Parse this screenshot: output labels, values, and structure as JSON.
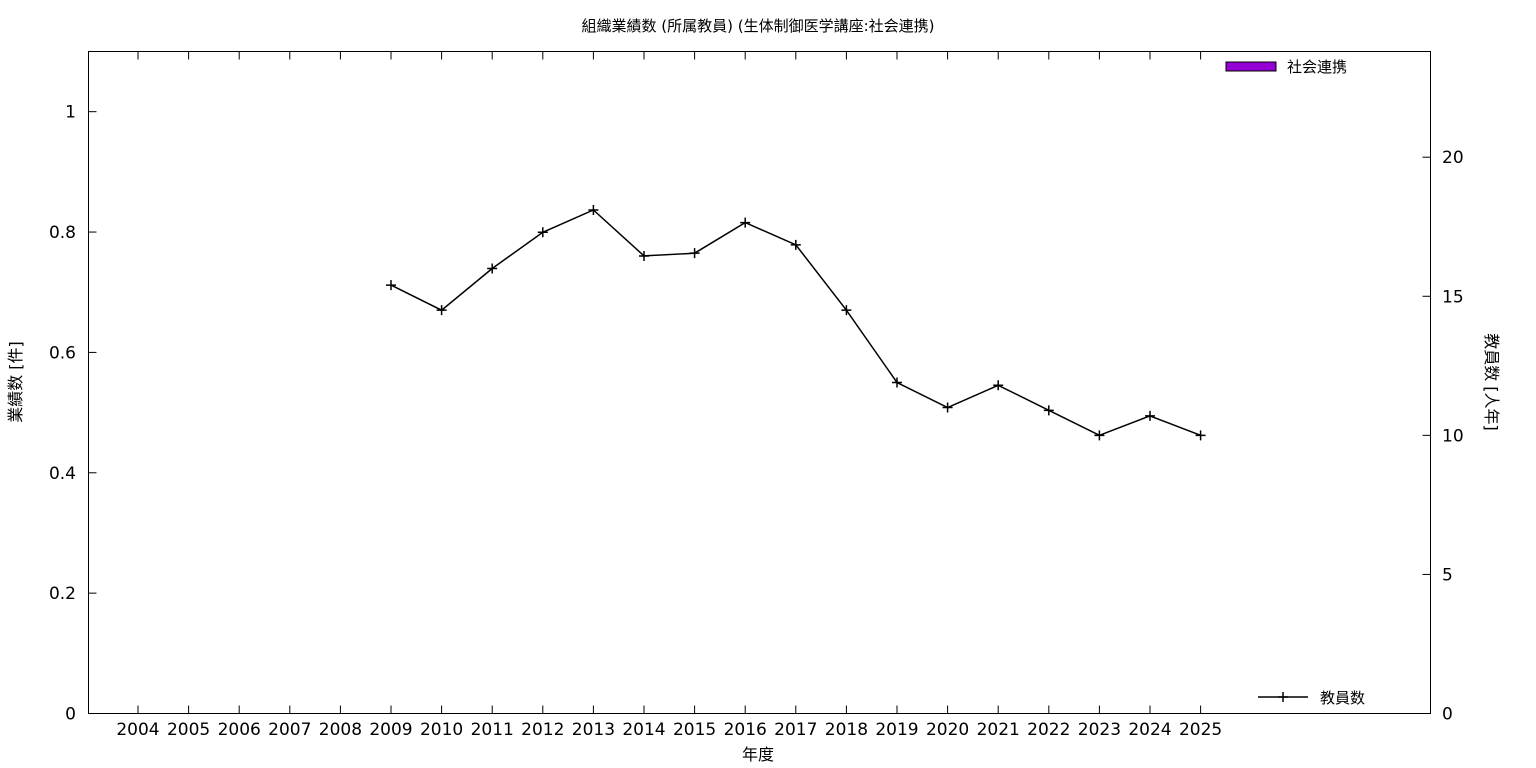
{
  "chart_data": {
    "type": "bar+line",
    "title": "組織業績数 (所属教員) (生体制御医学講座:社会連携)",
    "xlabel": "年度",
    "ylabel_left": "業績数 [件]",
    "ylabel_right": "教員数 [人年]",
    "categories": [
      "2004",
      "2005",
      "2006",
      "2007",
      "2008",
      "2009",
      "2010",
      "2011",
      "2012",
      "2013",
      "2014",
      "2015",
      "2016",
      "2017",
      "2018",
      "2019",
      "2020",
      "2021",
      "2022",
      "2023",
      "2024",
      "2025"
    ],
    "y_left": {
      "min": 0,
      "max": 1.1,
      "ticks": [
        0,
        0.2,
        0.4,
        0.6,
        0.8,
        1
      ],
      "tick_labels": [
        "0",
        "0.2",
        "0.4",
        "0.6",
        "0.8",
        "1"
      ]
    },
    "y_right": {
      "min": 0,
      "max": 23.8,
      "ticks": [
        0,
        5,
        10,
        15,
        20
      ],
      "tick_labels": [
        "0",
        "5",
        "10",
        "15",
        "20"
      ]
    },
    "series": [
      {
        "name": "社会連携",
        "type": "bar",
        "axis": "left",
        "color": "#9400d3",
        "values": [
          0,
          0,
          0,
          0,
          0,
          0,
          0,
          0,
          0,
          0,
          0,
          0,
          0,
          0,
          0,
          0,
          0,
          0,
          0,
          0,
          0,
          0
        ]
      },
      {
        "name": "教員数",
        "type": "line",
        "axis": "right",
        "color": "#000000",
        "values": [
          null,
          null,
          null,
          null,
          null,
          15.4,
          14.5,
          16.0,
          17.3,
          18.1,
          16.45,
          16.55,
          17.65,
          16.85,
          14.5,
          11.9,
          11.0,
          11.8,
          10.9,
          10.0,
          10.7,
          10.0
        ]
      }
    ],
    "legend": {
      "bar_position": "top-right",
      "line_position": "bottom-right"
    },
    "grid": false
  }
}
